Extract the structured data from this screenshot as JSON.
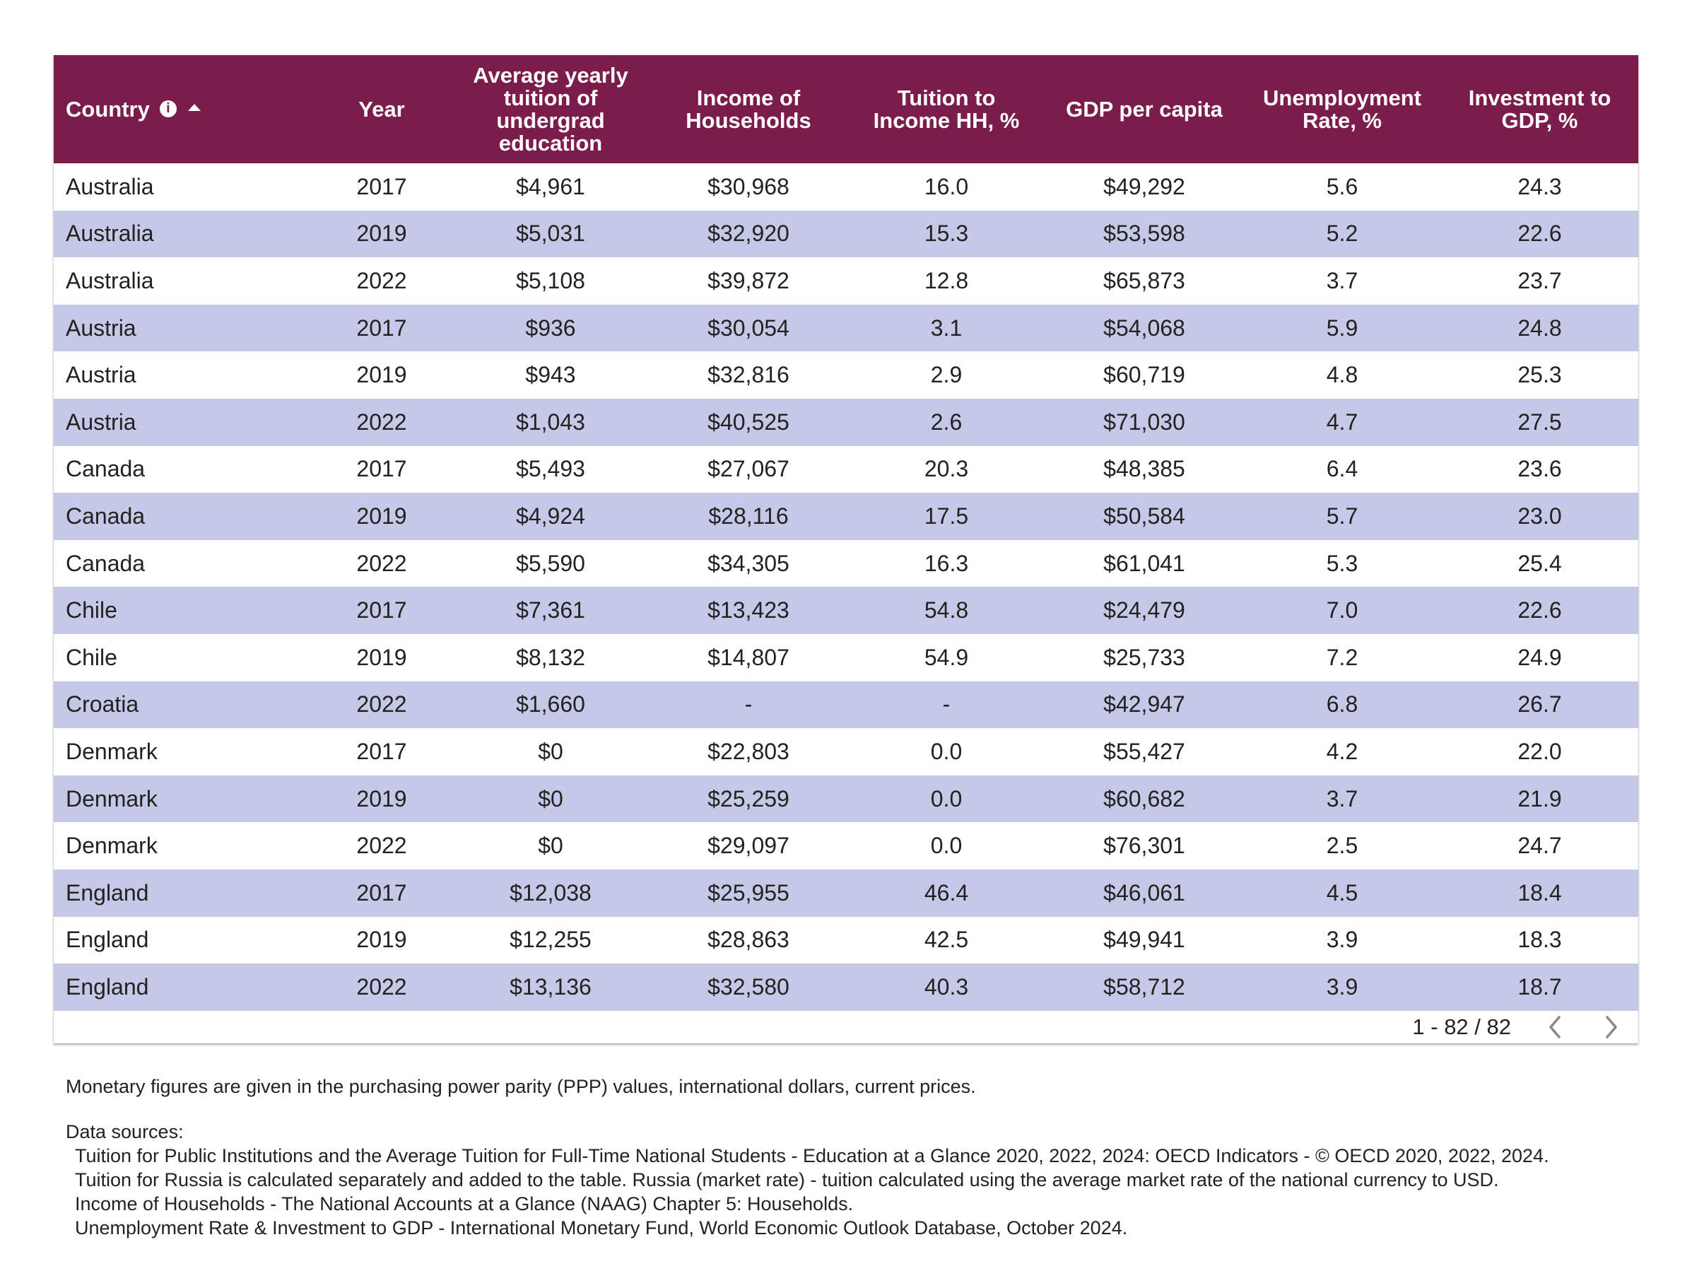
{
  "table": {
    "headers": {
      "country": "Country",
      "year": "Year",
      "tuition": [
        "Average yearly",
        "tuition of",
        "undergrad",
        "education"
      ],
      "income": [
        "Income of",
        "Households"
      ],
      "tuition_to_income": [
        "Tuition to",
        "Income HH, %"
      ],
      "gdp": "GDP per capita",
      "unemployment": [
        "Unemployment",
        "Rate, %"
      ],
      "investment": [
        "Investment to",
        "GDP, %"
      ]
    },
    "sort": {
      "column": "country",
      "direction": "ascending"
    },
    "info_icon_glyph": "i",
    "rows": [
      [
        "Australia",
        "2017",
        "$4,961",
        "$30,968",
        "16.0",
        "$49,292",
        "5.6",
        "24.3"
      ],
      [
        "Australia",
        "2019",
        "$5,031",
        "$32,920",
        "15.3",
        "$53,598",
        "5.2",
        "22.6"
      ],
      [
        "Australia",
        "2022",
        "$5,108",
        "$39,872",
        "12.8",
        "$65,873",
        "3.7",
        "23.7"
      ],
      [
        "Austria",
        "2017",
        "$936",
        "$30,054",
        "3.1",
        "$54,068",
        "5.9",
        "24.8"
      ],
      [
        "Austria",
        "2019",
        "$943",
        "$32,816",
        "2.9",
        "$60,719",
        "4.8",
        "25.3"
      ],
      [
        "Austria",
        "2022",
        "$1,043",
        "$40,525",
        "2.6",
        "$71,030",
        "4.7",
        "27.5"
      ],
      [
        "Canada",
        "2017",
        "$5,493",
        "$27,067",
        "20.3",
        "$48,385",
        "6.4",
        "23.6"
      ],
      [
        "Canada",
        "2019",
        "$4,924",
        "$28,116",
        "17.5",
        "$50,584",
        "5.7",
        "23.0"
      ],
      [
        "Canada",
        "2022",
        "$5,590",
        "$34,305",
        "16.3",
        "$61,041",
        "5.3",
        "25.4"
      ],
      [
        "Chile",
        "2017",
        "$7,361",
        "$13,423",
        "54.8",
        "$24,479",
        "7.0",
        "22.6"
      ],
      [
        "Chile",
        "2019",
        "$8,132",
        "$14,807",
        "54.9",
        "$25,733",
        "7.2",
        "24.9"
      ],
      [
        "Croatia",
        "2022",
        "$1,660",
        "-",
        "-",
        "$42,947",
        "6.8",
        "26.7"
      ],
      [
        "Denmark",
        "2017",
        "$0",
        "$22,803",
        "0.0",
        "$55,427",
        "4.2",
        "22.0"
      ],
      [
        "Denmark",
        "2019",
        "$0",
        "$25,259",
        "0.0",
        "$60,682",
        "3.7",
        "21.9"
      ],
      [
        "Denmark",
        "2022",
        "$0",
        "$29,097",
        "0.0",
        "$76,301",
        "2.5",
        "24.7"
      ],
      [
        "England",
        "2017",
        "$12,038",
        "$25,955",
        "46.4",
        "$46,061",
        "4.5",
        "18.4"
      ],
      [
        "England",
        "2019",
        "$12,255",
        "$28,863",
        "42.5",
        "$49,941",
        "3.9",
        "18.3"
      ],
      [
        "England",
        "2022",
        "$13,136",
        "$32,580",
        "40.3",
        "$58,712",
        "3.9",
        "18.7"
      ]
    ]
  },
  "pagination": {
    "range": "1 - 82 / 82",
    "prev_icon": "chevron-left-icon",
    "next_icon": "chevron-right-icon"
  },
  "notes": {
    "monetary": "Monetary figures are given in the purchasing power parity (PPP) values, international dollars, current prices.",
    "sources_title": "Data sources:",
    "sources": [
      "Tuition for Public Institutions and the Average Tuition for Full-Time National Students - Education at a Glance 2020, 2022, 2024: OECD Indicators - © OECD 2020, 2022, 2024.",
      "Tuition for Russia is calculated separately and added to the table. Russia (market rate) - tuition calculated using the average market rate of the national currency to USD.",
      "Income of Households - The National Accounts at a Glance (NAAG) Chapter 5: Households.",
      "Unemployment Rate & Investment to GDP - International Monetary Fund, World Economic Outlook Database, October 2024."
    ]
  },
  "colors": {
    "header_bg": "#7b1c4b",
    "header_text": "#ffffff",
    "row_alt_bg": "#c5c8e6",
    "row_bg": "#ffffff",
    "pager_icon": "#888888"
  }
}
